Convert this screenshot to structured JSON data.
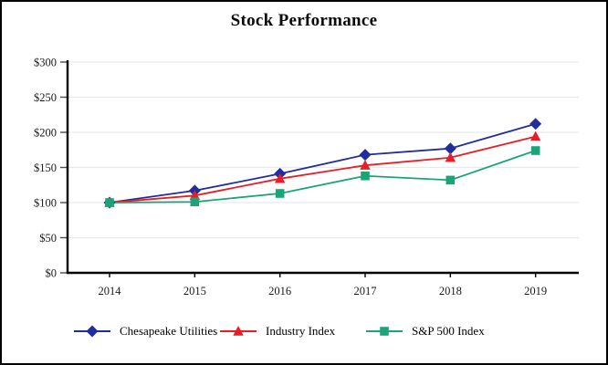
{
  "title": "Stock Performance",
  "chart_data": {
    "type": "line",
    "title": "Stock Performance",
    "categories": [
      "2014",
      "2015",
      "2016",
      "2017",
      "2018",
      "2019"
    ],
    "series": [
      {
        "name": "Chesapeake Utilities",
        "marker": "diamond",
        "color": "#1F2D9E",
        "values": [
          100,
          117,
          141,
          168,
          177,
          212
        ]
      },
      {
        "name": "Industry Index",
        "marker": "triangle",
        "color": "#EC1C24",
        "values": [
          100,
          110,
          134,
          153,
          164,
          194
        ]
      },
      {
        "name": "S&P 500 Index",
        "marker": "square",
        "color": "#1CA476",
        "values": [
          100,
          101,
          113,
          138,
          132,
          174
        ]
      }
    ],
    "y_axis": {
      "min": 0,
      "max": 300,
      "step": 50,
      "tick_labels": [
        "$0",
        "$50",
        "$100",
        "$150",
        "$200",
        "$250",
        "$300"
      ]
    },
    "x_axis": {
      "tick_labels": [
        "2014",
        "2015",
        "2016",
        "2017",
        "2018",
        "2019"
      ]
    },
    "grid": true,
    "legend_position": "bottom"
  },
  "colors": {
    "axis": "#000000",
    "grid": "#E9E9E9",
    "tick": "#4d4d4d",
    "label": "#1a1a1a",
    "background": "#FFFFFF",
    "frame": "#000000"
  }
}
